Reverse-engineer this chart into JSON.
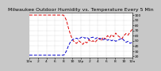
{
  "title": "Milwaukee Outdoor Humidity vs. Temperature Every 5 Min",
  "bg_color": "#c8c8c8",
  "plot_bg": "#ffffff",
  "red_line_color": "#dd0000",
  "blue_line_color": "#0000cc",
  "ylabel_right_values": [
    20,
    30,
    40,
    50,
    60,
    70,
    80,
    90,
    100
  ],
  "ylim": [
    17,
    105
  ],
  "xlim": [
    0,
    100
  ],
  "red_data": [
    [
      0,
      100
    ],
    [
      3,
      100
    ],
    [
      6,
      100
    ],
    [
      9,
      100
    ],
    [
      12,
      100
    ],
    [
      15,
      100
    ],
    [
      18,
      100
    ],
    [
      21,
      100
    ],
    [
      24,
      100
    ],
    [
      27,
      100
    ],
    [
      30,
      100
    ],
    [
      33,
      100
    ],
    [
      34,
      98
    ],
    [
      36,
      90
    ],
    [
      38,
      75
    ],
    [
      40,
      62
    ],
    [
      42,
      52
    ],
    [
      44,
      47
    ],
    [
      46,
      45
    ],
    [
      48,
      50
    ],
    [
      50,
      47
    ],
    [
      52,
      43
    ],
    [
      54,
      48
    ],
    [
      56,
      46
    ],
    [
      58,
      52
    ],
    [
      60,
      48
    ],
    [
      62,
      50
    ],
    [
      64,
      47
    ],
    [
      66,
      52
    ],
    [
      68,
      55
    ],
    [
      70,
      50
    ],
    [
      72,
      57
    ],
    [
      74,
      53
    ],
    [
      76,
      60
    ],
    [
      78,
      56
    ],
    [
      80,
      62
    ],
    [
      82,
      58
    ],
    [
      84,
      65
    ],
    [
      86,
      60
    ],
    [
      88,
      57
    ],
    [
      90,
      54
    ],
    [
      92,
      60
    ],
    [
      94,
      64
    ],
    [
      96,
      61
    ],
    [
      98,
      67
    ],
    [
      100,
      72
    ]
  ],
  "blue_data": [
    [
      0,
      22
    ],
    [
      3,
      22
    ],
    [
      6,
      22
    ],
    [
      9,
      22
    ],
    [
      12,
      22
    ],
    [
      15,
      22
    ],
    [
      18,
      22
    ],
    [
      21,
      22
    ],
    [
      24,
      22
    ],
    [
      27,
      22
    ],
    [
      30,
      22
    ],
    [
      33,
      22
    ],
    [
      34,
      23
    ],
    [
      36,
      30
    ],
    [
      38,
      40
    ],
    [
      40,
      48
    ],
    [
      42,
      52
    ],
    [
      44,
      54
    ],
    [
      46,
      55
    ],
    [
      48,
      53
    ],
    [
      50,
      56
    ],
    [
      52,
      58
    ],
    [
      54,
      55
    ],
    [
      56,
      57
    ],
    [
      58,
      53
    ],
    [
      60,
      56
    ],
    [
      62,
      57
    ],
    [
      64,
      54
    ],
    [
      66,
      56
    ],
    [
      68,
      53
    ],
    [
      70,
      55
    ],
    [
      72,
      52
    ],
    [
      74,
      54
    ],
    [
      76,
      51
    ],
    [
      78,
      53
    ],
    [
      80,
      50
    ],
    [
      82,
      52
    ],
    [
      84,
      49
    ],
    [
      86,
      51
    ],
    [
      88,
      53
    ],
    [
      90,
      55
    ],
    [
      92,
      51
    ],
    [
      94,
      47
    ],
    [
      96,
      49
    ],
    [
      98,
      45
    ],
    [
      100,
      47
    ]
  ],
  "xtick_labels": [
    "12a",
    "2",
    "4",
    "6",
    "8",
    "10",
    "12p",
    "2",
    "4",
    "6",
    "8",
    "10",
    "12a"
  ],
  "title_fontsize": 4.5,
  "tick_fontsize": 3.2
}
